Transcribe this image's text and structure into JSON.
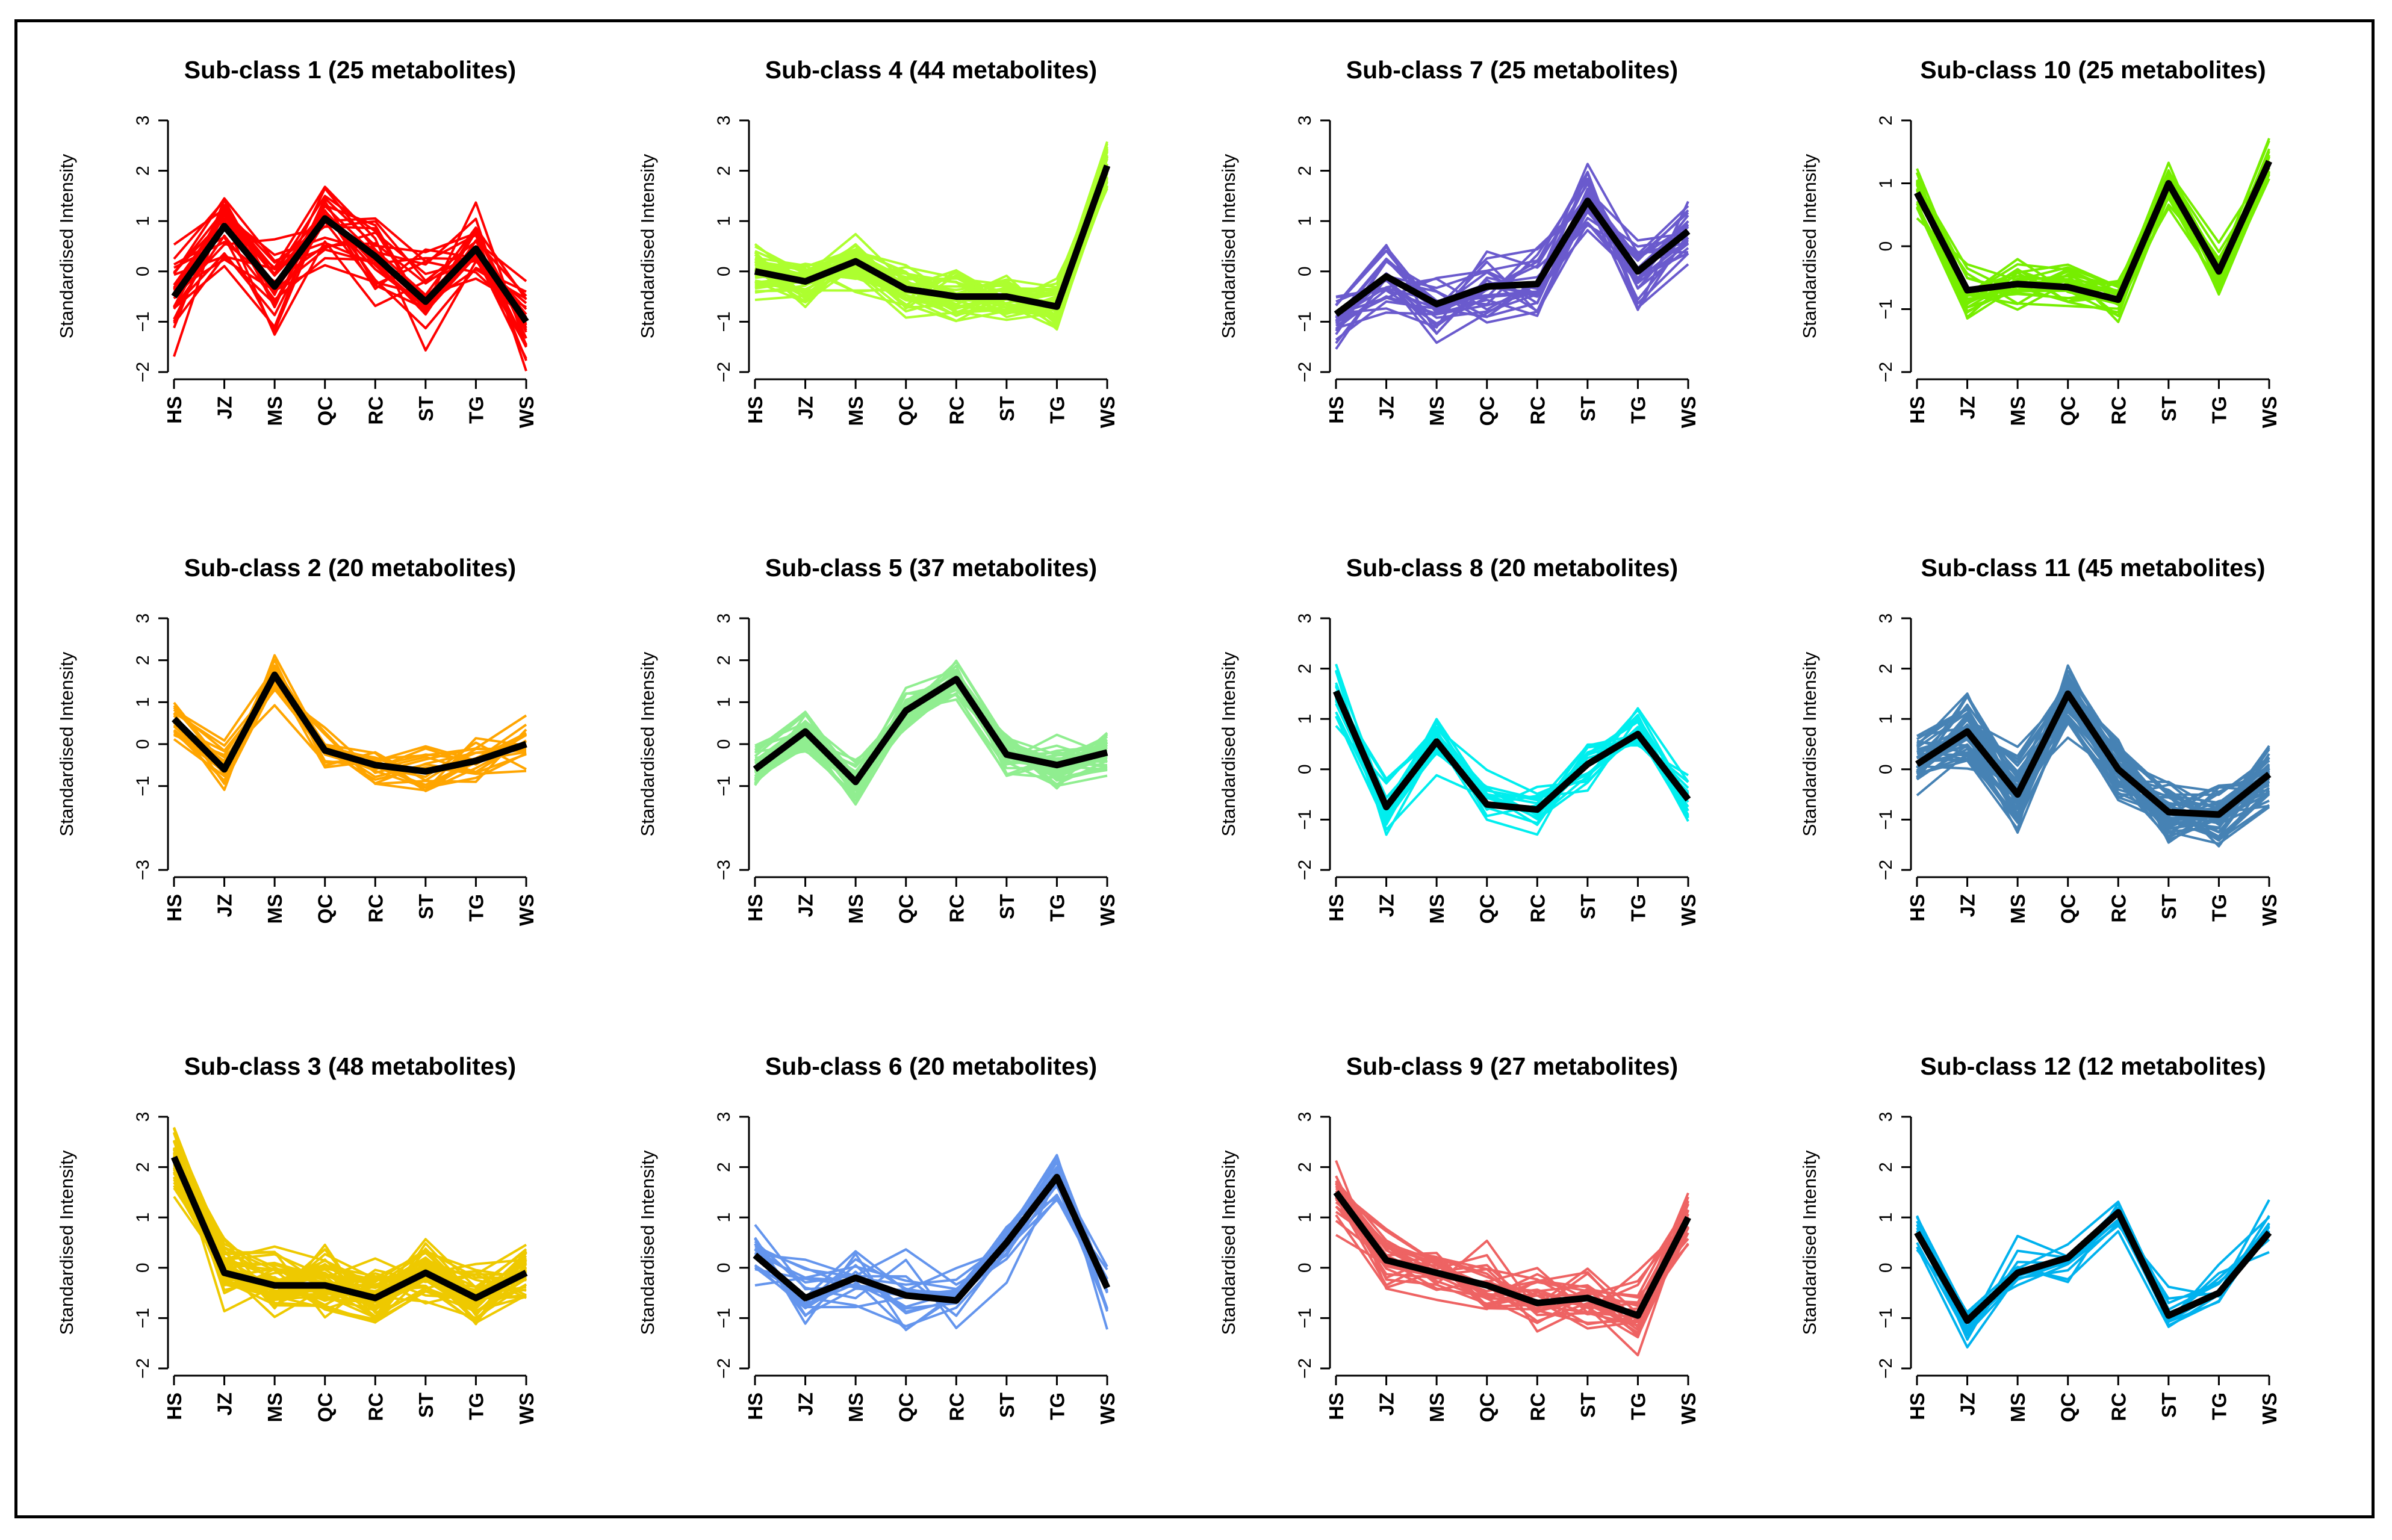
{
  "chart_data": {
    "type": "line",
    "categories": [
      "HS",
      "JZ",
      "MS",
      "QC",
      "RC",
      "ST",
      "TG",
      "WS"
    ],
    "ylabel": "Standardised Intensity",
    "panels": [
      {
        "id": 1,
        "title": "Sub-class 1 (25 metabolites)",
        "color": "#ff0000",
        "ylim": [
          -2,
          3
        ],
        "yticks": [
          -2,
          -1,
          0,
          1,
          2,
          3
        ],
        "mean": [
          -0.5,
          0.9,
          -0.3,
          1.05,
          0.3,
          -0.6,
          0.45,
          -1.0
        ],
        "lines": 25,
        "spread": 0.65
      },
      {
        "id": 2,
        "title": "Sub-class 2 (20 metabolites)",
        "color": "#ffa500",
        "ylim": [
          -3,
          3
        ],
        "yticks": [
          -3,
          -1,
          0,
          1,
          2,
          3
        ],
        "mean": [
          0.6,
          -0.6,
          1.65,
          -0.15,
          -0.5,
          -0.65,
          -0.4,
          0.0
        ],
        "lines": 20,
        "spread": 0.4
      },
      {
        "id": 3,
        "title": "Sub-class 3 (48 metabolites)",
        "color": "#eec900",
        "ylim": [
          -2,
          3
        ],
        "yticks": [
          -2,
          -1,
          0,
          1,
          2,
          3
        ],
        "mean": [
          2.2,
          -0.1,
          -0.35,
          -0.35,
          -0.6,
          -0.1,
          -0.6,
          -0.1
        ],
        "lines": 48,
        "spread": 0.45
      },
      {
        "id": 4,
        "title": "Sub-class 4 (44 metabolites)",
        "color": "#adff2f",
        "ylim": [
          -2,
          3
        ],
        "yticks": [
          -2,
          -1,
          0,
          1,
          2,
          3
        ],
        "mean": [
          0.0,
          -0.2,
          0.2,
          -0.35,
          -0.5,
          -0.5,
          -0.7,
          2.1
        ],
        "lines": 44,
        "spread": 0.35
      },
      {
        "id": 5,
        "title": "Sub-class 5 (37 metabolites)",
        "color": "#90ee90",
        "ylim": [
          -3,
          3
        ],
        "yticks": [
          -3,
          -1,
          0,
          1,
          2,
          3
        ],
        "mean": [
          -0.6,
          0.3,
          -0.9,
          0.8,
          1.55,
          -0.25,
          -0.5,
          -0.2
        ],
        "lines": 37,
        "spread": 0.4
      },
      {
        "id": 6,
        "title": "Sub-class 6 (20 metabolites)",
        "color": "#6495ed",
        "ylim": [
          -2,
          3
        ],
        "yticks": [
          -2,
          -1,
          0,
          1,
          2,
          3
        ],
        "mean": [
          0.25,
          -0.6,
          -0.2,
          -0.55,
          -0.65,
          0.5,
          1.8,
          -0.4
        ],
        "lines": 20,
        "spread": 0.45
      },
      {
        "id": 7,
        "title": "Sub-class 7 (25 metabolites)",
        "color": "#6a5acd",
        "ylim": [
          -2,
          3
        ],
        "yticks": [
          -2,
          -1,
          0,
          1,
          2,
          3
        ],
        "mean": [
          -0.85,
          -0.1,
          -0.65,
          -0.3,
          -0.25,
          1.4,
          0.0,
          0.8
        ],
        "lines": 25,
        "spread": 0.5
      },
      {
        "id": 8,
        "title": "Sub-class 8 (20 metabolites)",
        "color": "#00eeee",
        "ylim": [
          -2,
          3
        ],
        "yticks": [
          -2,
          -1,
          0,
          1,
          2,
          3
        ],
        "mean": [
          1.55,
          -0.75,
          0.55,
          -0.7,
          -0.8,
          0.1,
          0.7,
          -0.6
        ],
        "lines": 20,
        "spread": 0.4
      },
      {
        "id": 9,
        "title": "Sub-class 9 (27 metabolites)",
        "color": "#ee6363",
        "ylim": [
          -2,
          3
        ],
        "yticks": [
          -2,
          -1,
          0,
          1,
          2,
          3
        ],
        "mean": [
          1.5,
          0.15,
          -0.1,
          -0.35,
          -0.7,
          -0.6,
          -0.95,
          1.0
        ],
        "lines": 27,
        "spread": 0.45
      },
      {
        "id": 10,
        "title": "Sub-class 10 (25 metabolites)",
        "color": "#76ee00",
        "ylim": [
          -2,
          2
        ],
        "yticks": [
          -2,
          -1,
          0,
          1,
          2
        ],
        "mean": [
          0.85,
          -0.7,
          -0.6,
          -0.65,
          -0.85,
          1.0,
          -0.4,
          1.35
        ],
        "lines": 25,
        "spread": 0.3
      },
      {
        "id": 11,
        "title": "Sub-class 11 (45 metabolites)",
        "color": "#4682b4",
        "ylim": [
          -2,
          3
        ],
        "yticks": [
          -2,
          -1,
          0,
          1,
          2,
          3
        ],
        "mean": [
          0.1,
          0.75,
          -0.5,
          1.5,
          0.0,
          -0.85,
          -0.9,
          -0.1
        ],
        "lines": 45,
        "spread": 0.5
      },
      {
        "id": 12,
        "title": "Sub-class 12 (12 metabolites)",
        "color": "#00b2ee",
        "ylim": [
          -2,
          3
        ],
        "yticks": [
          -2,
          -1,
          0,
          1,
          2,
          3
        ],
        "mean": [
          0.7,
          -1.05,
          -0.1,
          0.2,
          1.1,
          -0.95,
          -0.5,
          0.7
        ],
        "lines": 12,
        "spread": 0.4
      }
    ]
  }
}
